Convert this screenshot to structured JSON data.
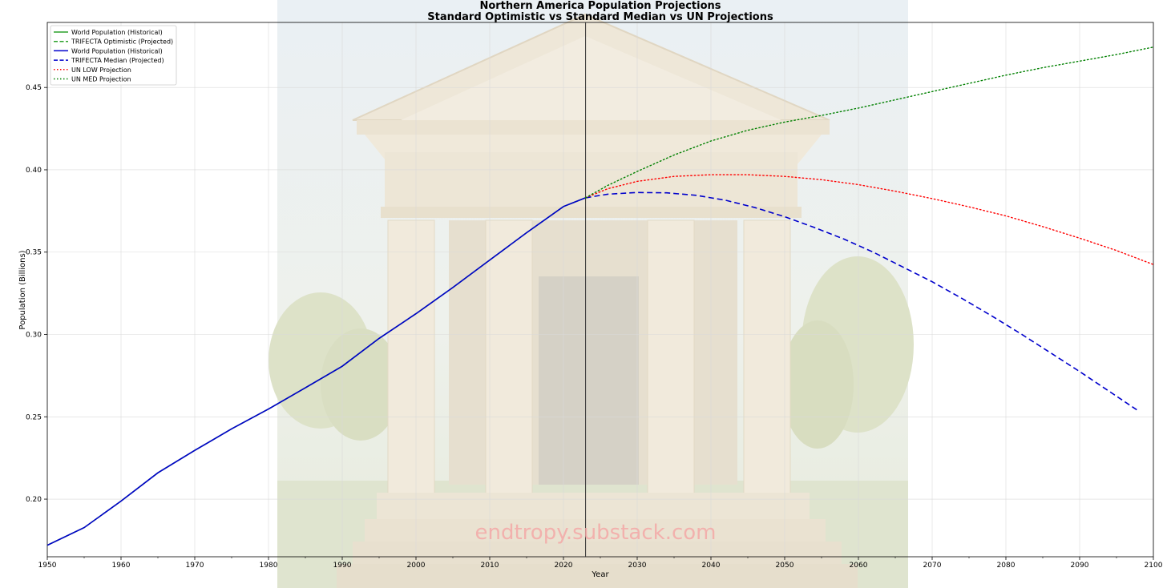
{
  "chart_data": {
    "type": "line",
    "title": "Northern America Population Projections",
    "subtitle": "Standard Optimistic vs Standard Median vs UN Projections",
    "xlabel": "Year",
    "ylabel": "Population (Billions)",
    "xlim": [
      1950,
      2100
    ],
    "ylim": [
      0.165,
      0.4895
    ],
    "x_ticks": [
      1950,
      1960,
      1970,
      1980,
      1990,
      2000,
      2010,
      2020,
      2030,
      2040,
      2050,
      2060,
      2070,
      2080,
      2090,
      2100
    ],
    "y_ticks": [
      0.2,
      0.25,
      0.3,
      0.35,
      0.4,
      0.45
    ],
    "y_tick_labels": [
      "0.20",
      "0.25",
      "0.30",
      "0.35",
      "0.40",
      "0.45"
    ],
    "grid": true,
    "legend_position": "top-left",
    "vertical_line_x": 2023,
    "watermark": "endtropy.substack.com",
    "series": [
      {
        "name": "World Population (Historical)",
        "color": "#2ca02c",
        "style": "solid",
        "x": [
          1950,
          1955,
          1960,
          1965,
          1970,
          1975,
          1980,
          1985,
          1990,
          1995,
          2000,
          2005,
          2010,
          2015,
          2020,
          2023
        ],
        "y": [
          0.172,
          0.1827,
          0.1988,
          0.216,
          0.2296,
          0.2427,
          0.2547,
          0.2676,
          0.2807,
          0.2976,
          0.3126,
          0.3285,
          0.3452,
          0.3618,
          0.3777,
          0.383
        ]
      },
      {
        "name": "TRIFECTA Optimistic (Projected)",
        "color": "#2ca02c",
        "style": "dashed",
        "x": [
          2023
        ],
        "y": [
          0.383
        ]
      },
      {
        "name": "World Population (Historical)",
        "color": "#0000cc",
        "style": "solid",
        "x": [
          1950,
          1955,
          1960,
          1965,
          1970,
          1975,
          1980,
          1985,
          1990,
          1995,
          2000,
          2005,
          2010,
          2015,
          2020,
          2023
        ],
        "y": [
          0.172,
          0.1827,
          0.1988,
          0.216,
          0.2296,
          0.2427,
          0.2547,
          0.2676,
          0.2807,
          0.2976,
          0.3126,
          0.3285,
          0.3452,
          0.3618,
          0.3777,
          0.383
        ]
      },
      {
        "name": "TRIFECTA Median (Projected)",
        "color": "#0000cc",
        "style": "dashed",
        "x": [
          2023,
          2026,
          2030,
          2034,
          2038,
          2042,
          2046,
          2050,
          2054,
          2058,
          2062,
          2066,
          2070,
          2074,
          2078,
          2082,
          2086,
          2090,
          2094,
          2098
        ],
        "y": [
          0.383,
          0.3852,
          0.3862,
          0.386,
          0.3845,
          0.3815,
          0.377,
          0.3715,
          0.365,
          0.358,
          0.35,
          0.341,
          0.332,
          0.322,
          0.3115,
          0.3005,
          0.289,
          0.2775,
          0.2655,
          0.2535
        ]
      },
      {
        "name": "UN LOW Projection",
        "color": "#ff0000",
        "style": "dotted",
        "x": [
          2023,
          2026,
          2030,
          2035,
          2040,
          2045,
          2050,
          2055,
          2060,
          2065,
          2070,
          2075,
          2080,
          2085,
          2090,
          2095,
          2100
        ],
        "y": [
          0.383,
          0.3885,
          0.393,
          0.396,
          0.397,
          0.397,
          0.396,
          0.394,
          0.391,
          0.387,
          0.3825,
          0.3775,
          0.372,
          0.3655,
          0.3585,
          0.351,
          0.3425
        ]
      },
      {
        "name": "UN MED Projection",
        "color": "#008000",
        "style": "dotted",
        "x": [
          2023,
          2026,
          2030,
          2035,
          2040,
          2045,
          2050,
          2055,
          2060,
          2065,
          2070,
          2075,
          2080,
          2085,
          2090,
          2095,
          2100
        ],
        "y": [
          0.383,
          0.3905,
          0.399,
          0.409,
          0.4175,
          0.424,
          0.429,
          0.433,
          0.4375,
          0.4425,
          0.4475,
          0.4525,
          0.4575,
          0.462,
          0.466,
          0.47,
          0.4745
        ]
      }
    ]
  }
}
